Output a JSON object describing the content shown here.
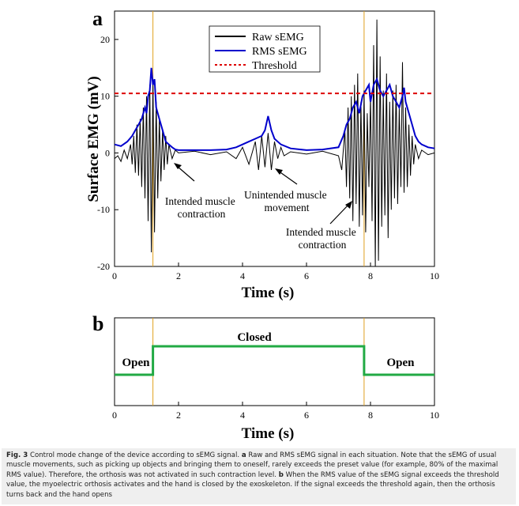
{
  "panel_a": {
    "letter": "a",
    "ylabel": "Surface EMG (mV)",
    "xlabel": "Time (s)",
    "legend": [
      "Raw sEMG",
      "RMS sEMG",
      "Threshold"
    ],
    "annotations": [
      "Intended muscle contraction",
      "Unintended muscle movement",
      "Intended muscle contraction"
    ]
  },
  "panel_b": {
    "letter": "b",
    "xlabel": "Time (s)",
    "state_labels": [
      "Open",
      "Closed",
      "Open"
    ]
  },
  "caption": {
    "prefix": "Fig. 3",
    "text1": " Control mode change of the device according to sEMG signal. ",
    "a_label": "a",
    "text2": " Raw and RMS sEMG signal in each situation. Note that the sEMG of usual muscle movements, such as picking up objects and bringing them to oneself, rarely exceeds the preset value (for example, 80% of the maximal RMS value). Therefore, the orthosis was not activated in such contraction level. ",
    "b_label": "b",
    "text3": " When the RMS value of the sEMG signal exceeds the threshold value, the myoelectric orthosis activates and the hand is closed by the exoskeleton. If the signal exceeds the threshold again, then the orthosis turns back and the hand opens"
  },
  "chart_data": [
    {
      "type": "line",
      "panel": "a",
      "xlabel": "Time (s)",
      "ylabel": "Surface EMG (mV)",
      "xlim": [
        0,
        10
      ],
      "ylim": [
        -20,
        25
      ],
      "xticks": [
        0,
        2,
        4,
        6,
        8,
        10
      ],
      "yticks": [
        -20,
        -10,
        0,
        10,
        20
      ],
      "legend_position": "top-center",
      "threshold": 10.5,
      "event_lines_x": [
        1.2,
        7.8
      ],
      "series": [
        {
          "name": "Raw sEMG",
          "color": "#000000",
          "x": [
            0,
            0.1,
            0.2,
            0.3,
            0.4,
            0.5,
            0.55,
            0.6,
            0.65,
            0.7,
            0.75,
            0.8,
            0.85,
            0.9,
            0.95,
            1.0,
            1.05,
            1.1,
            1.15,
            1.2,
            1.25,
            1.3,
            1.35,
            1.4,
            1.45,
            1.5,
            1.55,
            1.6,
            1.65,
            1.7,
            1.8,
            1.9,
            2.0,
            2.5,
            3.0,
            3.5,
            3.8,
            4.0,
            4.2,
            4.4,
            4.5,
            4.6,
            4.7,
            4.8,
            4.9,
            5.0,
            5.1,
            5.2,
            5.3,
            5.5,
            6.0,
            6.5,
            7.0,
            7.1,
            7.2,
            7.25,
            7.3,
            7.35,
            7.4,
            7.45,
            7.5,
            7.55,
            7.6,
            7.65,
            7.7,
            7.75,
            7.8,
            7.85,
            7.9,
            7.95,
            8.0,
            8.05,
            8.1,
            8.15,
            8.2,
            8.25,
            8.3,
            8.35,
            8.4,
            8.45,
            8.5,
            8.55,
            8.6,
            8.65,
            8.7,
            8.75,
            8.8,
            8.85,
            8.9,
            8.95,
            9.0,
            9.05,
            9.1,
            9.15,
            9.2,
            9.25,
            9.3,
            9.35,
            9.4,
            9.5,
            9.6,
            9.8,
            10.0
          ],
          "y": [
            -1,
            -0.5,
            -1.5,
            0.5,
            -1,
            1.5,
            -2,
            3,
            -3.5,
            5,
            -4,
            6,
            -6,
            8,
            -8,
            10,
            -12,
            12,
            -17.5,
            13,
            -14,
            9,
            -8,
            6,
            -5,
            4,
            -3,
            3,
            -2,
            1.5,
            -1,
            0.5,
            0,
            0.3,
            -0.3,
            0.2,
            -1,
            1,
            -2,
            2,
            -3,
            3,
            -2.5,
            3.5,
            -3,
            2,
            -1,
            1,
            -0.5,
            0.2,
            -0.2,
            0.3,
            -0.5,
            -3,
            4,
            -6,
            8,
            -8,
            10,
            -12,
            12,
            -9,
            14,
            -13,
            9,
            -11,
            11,
            -14,
            7,
            -6,
            10,
            -12,
            19,
            -20,
            23.5,
            -19,
            17,
            -13,
            11,
            -11,
            14,
            -15,
            9,
            -10,
            11,
            -8,
            12,
            -9,
            8,
            -6,
            16,
            -7,
            8,
            -6,
            5,
            -4,
            3,
            -2,
            1.5,
            -1,
            0.5,
            -0.3,
            0
          ]
        },
        {
          "name": "RMS sEMG",
          "color": "#0000cc",
          "x": [
            0,
            0.2,
            0.4,
            0.55,
            0.65,
            0.75,
            0.85,
            0.95,
            1.0,
            1.05,
            1.1,
            1.15,
            1.2,
            1.25,
            1.3,
            1.4,
            1.5,
            1.6,
            1.7,
            1.8,
            1.9,
            2.0,
            2.5,
            3.0,
            3.5,
            3.8,
            4.0,
            4.2,
            4.4,
            4.6,
            4.7,
            4.8,
            4.9,
            5.0,
            5.2,
            5.5,
            6.0,
            6.5,
            7.0,
            7.15,
            7.25,
            7.35,
            7.45,
            7.55,
            7.65,
            7.75,
            7.85,
            7.95,
            8.0,
            8.1,
            8.2,
            8.3,
            8.4,
            8.5,
            8.6,
            8.7,
            8.8,
            8.9,
            9.0,
            9.05,
            9.1,
            9.2,
            9.3,
            9.4,
            9.5,
            9.6,
            9.8,
            10.0
          ],
          "y": [
            1.5,
            1.2,
            2,
            3,
            4,
            5,
            6,
            8,
            7,
            10,
            11,
            15,
            12,
            13,
            8,
            6,
            4,
            2,
            1.5,
            1,
            0.6,
            0.5,
            0.5,
            0.5,
            0.6,
            1,
            1.5,
            2,
            2.5,
            3,
            4,
            6.5,
            4,
            2.5,
            1.5,
            0.8,
            0.5,
            0.6,
            1,
            3,
            5,
            6,
            8,
            9,
            7,
            10,
            11,
            12,
            9,
            12,
            13,
            11,
            10,
            11,
            12,
            10,
            9,
            8,
            10,
            11.5,
            9,
            7,
            5,
            3,
            2,
            1.5,
            1,
            0.8
          ]
        },
        {
          "name": "Threshold",
          "color": "#dd0000",
          "x": [
            0,
            10
          ],
          "y": [
            10.5,
            10.5
          ]
        }
      ]
    },
    {
      "type": "line",
      "panel": "b",
      "xlabel": "Time (s)",
      "xlim": [
        0,
        10
      ],
      "xticks": [
        0,
        2,
        4,
        6,
        8,
        10
      ],
      "event_lines_x": [
        1.2,
        7.8
      ],
      "series": [
        {
          "color": "#22aa44",
          "x": [
            0,
            1.2,
            1.2,
            7.8,
            7.8,
            10
          ],
          "y": [
            0,
            0,
            1,
            1,
            0,
            0
          ]
        }
      ]
    }
  ]
}
